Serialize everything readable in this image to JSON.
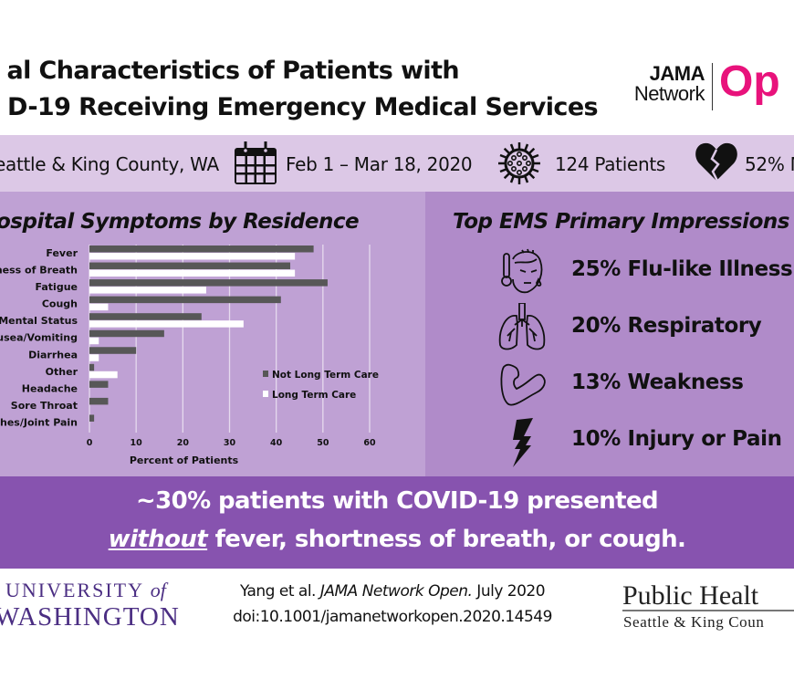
{
  "header": {
    "title_line1": "al Characteristics of Patients with",
    "title_line2": "D-19 Receiving Emergency Medical Services",
    "logo": {
      "line1": "JAMA",
      "line2": "Network",
      "line3": "Op"
    }
  },
  "info_bar": {
    "location": {
      "icon": "location-icon",
      "text": "eattle & King County, WA"
    },
    "dates": {
      "icon": "calendar-icon",
      "text": "Feb 1 – Mar 18, 2020"
    },
    "patients": {
      "icon": "virus-icon",
      "text": "124 Patients"
    },
    "mortality": {
      "icon": "broken-heart-icon",
      "text": "52% M"
    }
  },
  "left_panel": {
    "title": "ospital Symptoms by Residence"
  },
  "right_panel": {
    "title": "Top EMS Primary Impressions",
    "items": [
      {
        "icon": "sick-face-thermometer-icon",
        "text": "25% Flu-like Illness",
        "percent": 25
      },
      {
        "icon": "lungs-icon",
        "text": "20% Respiratory",
        "percent": 20
      },
      {
        "icon": "flexed-arm-icon",
        "text": "13% Weakness",
        "percent": 13
      },
      {
        "icon": "lightning-bolt-icon",
        "text": "10% Injury or Pain",
        "percent": 10
      }
    ]
  },
  "banner": {
    "line1": "~30% patients with COVID-19 presented",
    "line2_emphasis": "without",
    "line2_rest": " fever, shortness of breath, or cough."
  },
  "footer": {
    "uw_line1": "UNIVERSITY",
    "uw_of": "of",
    "uw_line2": "WASHINGTON",
    "citation_authors": "Yang et al. ",
    "citation_journal": "JAMA Network Open.",
    "citation_date": " July 2020",
    "doi": "doi:10.1001/jamanetworkopen.2020.14549",
    "ph_line1": "Public Healt",
    "ph_line2": "Seattle & King Coun"
  },
  "colors": {
    "info_bar_bg": "#dcc8e6",
    "left_panel_bg": "#bfa1d4",
    "right_panel_bg": "#b08bc9",
    "banner_bg": "#8753af",
    "jama_pink": "#e8127b",
    "uw_purple": "#4b2e83",
    "series_not_ltc": "#575757",
    "series_ltc": "#ffffff"
  },
  "chart_data": {
    "type": "bar",
    "orientation": "horizontal",
    "title": "ospital Symptoms by Residence",
    "xlabel": "Percent of Patients",
    "ylabel": "",
    "xlim": [
      0,
      60
    ],
    "xticks": [
      0,
      10,
      20,
      30,
      40,
      50,
      60
    ],
    "grid": true,
    "legend_position": "bottom-right",
    "categories": [
      "Fever",
      "ness of Breath",
      "Fatigue",
      "Cough",
      "l Mental Status",
      "usea/Vomiting",
      "Diarrhea",
      "Other",
      "Headache",
      "Sore Throat",
      "ches/Joint Pain"
    ],
    "series": [
      {
        "name": "Not Long Term Care",
        "color": "#575757",
        "values": [
          48,
          43,
          51,
          41,
          24,
          16,
          10,
          1,
          4,
          4,
          1
        ]
      },
      {
        "name": "Long Term Care",
        "color": "#ffffff",
        "values": [
          44,
          44,
          25,
          4,
          33,
          2,
          2,
          6,
          0,
          0,
          0
        ]
      }
    ]
  }
}
